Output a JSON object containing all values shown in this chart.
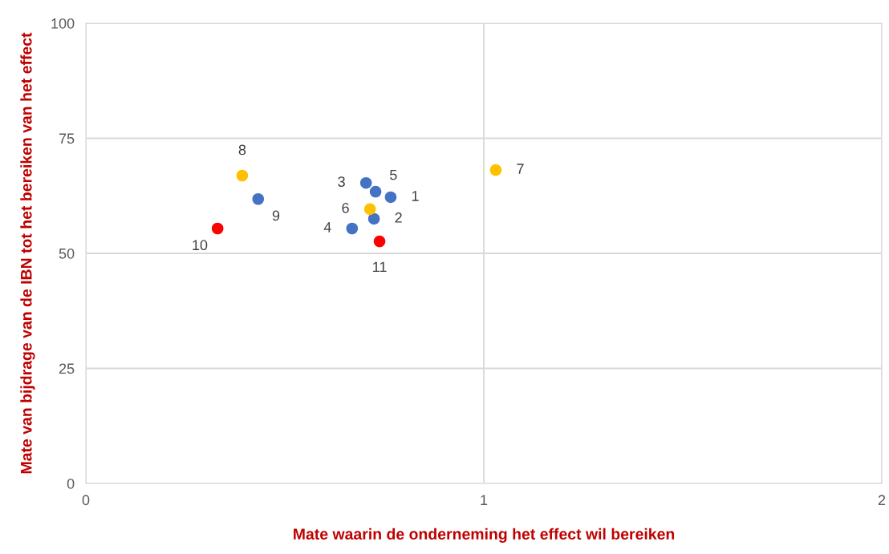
{
  "chart_data": {
    "type": "scatter",
    "xlabel": "Mate waarin de onderneming het effect wil bereiken",
    "ylabel": "Mate van bijdrage van de IBN tot het bereiken van het effect",
    "x": [
      0.766,
      0.724,
      0.704,
      0.669,
      0.728,
      0.714,
      1.03,
      0.393,
      0.433,
      0.331,
      0.738
    ],
    "values": [
      62.2,
      57.5,
      65.3,
      55.4,
      63.4,
      59.6,
      68.1,
      66.9,
      61.8,
      55.4,
      52.6
    ],
    "colors": [
      "#4472c4",
      "#4472c4",
      "#4472c4",
      "#4472c4",
      "#4472c4",
      "#ffc000",
      "#ffc000",
      "#ffc000",
      "#4472c4",
      "#ff0000",
      "#ff0000"
    ],
    "annotations": [
      {
        "text": "1",
        "x": 0.766,
        "y": 62.2
      },
      {
        "text": "2",
        "x": 0.724,
        "y": 57.5
      },
      {
        "text": "3",
        "x": 0.704,
        "y": 65.3
      },
      {
        "text": "4",
        "x": 0.669,
        "y": 55.4
      },
      {
        "text": "5",
        "x": 0.728,
        "y": 63.4
      },
      {
        "text": "6",
        "x": 0.714,
        "y": 59.6
      },
      {
        "text": "7",
        "x": 1.03,
        "y": 68.1
      },
      {
        "text": "8",
        "x": 0.393,
        "y": 66.9
      },
      {
        "text": "9",
        "x": 0.433,
        "y": 61.8
      },
      {
        "text": "10",
        "x": 0.331,
        "y": 55.4
      },
      {
        "text": "11",
        "x": 0.738,
        "y": 52.6
      }
    ],
    "xlim": [
      0,
      2
    ],
    "xticks": [
      0,
      1,
      2
    ],
    "ylim": [
      0,
      100
    ],
    "yticks": [
      0,
      25,
      50,
      75,
      100
    ],
    "grid": true,
    "marker": "circle"
  }
}
